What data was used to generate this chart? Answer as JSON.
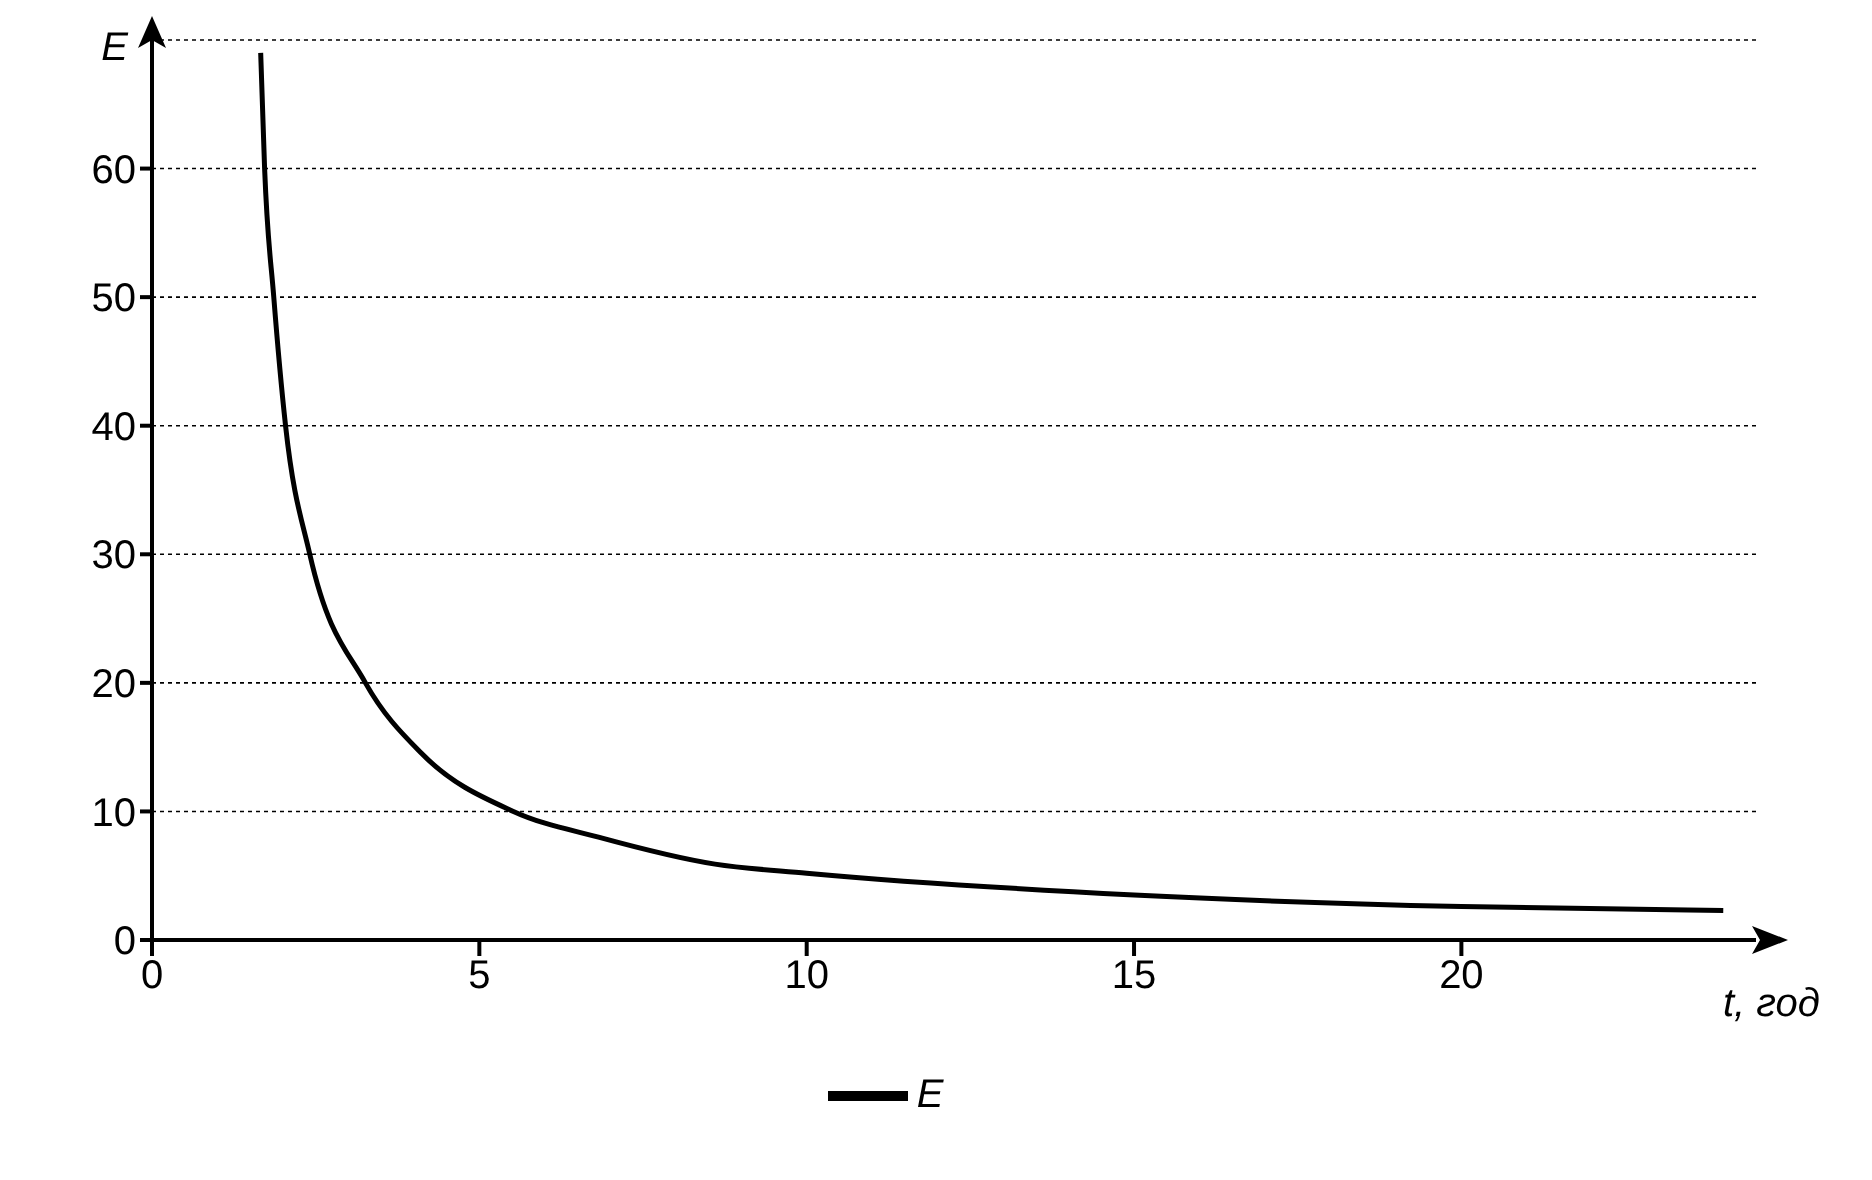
{
  "chart_data": {
    "type": "line",
    "xlabel": "t, год",
    "ylabel": "E",
    "x": [
      1.66,
      1.72,
      1.86,
      2.04,
      2.41,
      3.26,
      4.12,
      5.52,
      6.82,
      8.6,
      10,
      15,
      20,
      24
    ],
    "series": [
      {
        "name": "E",
        "color": "#000000",
        "values": [
          69,
          60,
          50,
          40,
          30,
          20,
          14.5,
          10,
          8,
          5.9,
          5.2,
          3.5,
          2.6,
          2.3
        ]
      }
    ],
    "xlim": [
      0,
      24.5
    ],
    "ylim": [
      0,
      70
    ],
    "xticks": [
      0,
      5,
      10,
      15,
      20
    ],
    "yticks": [
      0,
      10,
      20,
      30,
      40,
      50,
      60
    ],
    "grid": "y",
    "legend": "bottom",
    "marker": "none",
    "line_style": "solid"
  }
}
